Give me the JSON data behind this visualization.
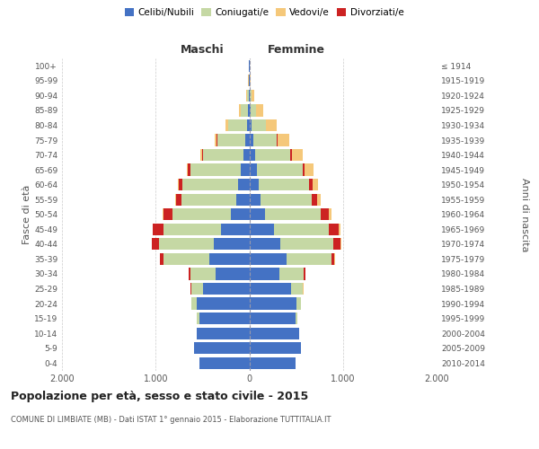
{
  "age_groups": [
    "0-4",
    "5-9",
    "10-14",
    "15-19",
    "20-24",
    "25-29",
    "30-34",
    "35-39",
    "40-44",
    "45-49",
    "50-54",
    "55-59",
    "60-64",
    "65-69",
    "70-74",
    "75-79",
    "80-84",
    "85-89",
    "90-94",
    "95-99",
    "100+"
  ],
  "birth_years": [
    "2010-2014",
    "2005-2009",
    "2000-2004",
    "1995-1999",
    "1990-1994",
    "1985-1989",
    "1980-1984",
    "1975-1979",
    "1970-1974",
    "1965-1969",
    "1960-1964",
    "1955-1959",
    "1950-1954",
    "1945-1949",
    "1940-1944",
    "1935-1939",
    "1930-1934",
    "1925-1929",
    "1920-1924",
    "1915-1919",
    "≤ 1914"
  ],
  "males": {
    "celibi": [
      530,
      590,
      560,
      530,
      560,
      490,
      360,
      430,
      380,
      300,
      200,
      140,
      120,
      90,
      60,
      40,
      25,
      10,
      5,
      3,
      2
    ],
    "coniugati": [
      0,
      0,
      0,
      30,
      60,
      130,
      270,
      490,
      580,
      620,
      620,
      580,
      590,
      540,
      430,
      300,
      200,
      80,
      20,
      5,
      2
    ],
    "vedovi": [
      0,
      0,
      0,
      0,
      0,
      0,
      2,
      5,
      5,
      5,
      5,
      8,
      10,
      10,
      15,
      20,
      20,
      15,
      5,
      2,
      0
    ],
    "divorziati": [
      0,
      0,
      0,
      0,
      2,
      5,
      15,
      30,
      80,
      110,
      100,
      60,
      40,
      25,
      15,
      10,
      5,
      2,
      0,
      0,
      0
    ]
  },
  "females": {
    "nubili": [
      490,
      550,
      530,
      490,
      500,
      450,
      320,
      400,
      330,
      260,
      170,
      120,
      100,
      80,
      60,
      40,
      25,
      10,
      5,
      3,
      2
    ],
    "coniugate": [
      0,
      0,
      0,
      20,
      50,
      120,
      260,
      480,
      570,
      590,
      590,
      550,
      540,
      490,
      380,
      250,
      150,
      60,
      15,
      5,
      2
    ],
    "vedove": [
      0,
      0,
      0,
      0,
      0,
      2,
      2,
      5,
      10,
      20,
      30,
      40,
      60,
      100,
      120,
      130,
      110,
      80,
      30,
      5,
      1
    ],
    "divorziate": [
      0,
      0,
      0,
      0,
      2,
      5,
      15,
      30,
      75,
      100,
      90,
      55,
      35,
      20,
      12,
      8,
      5,
      2,
      0,
      0,
      0
    ]
  },
  "colors": {
    "celibi_nubili": "#4472c4",
    "coniugati": "#c5d8a4",
    "vedovi": "#f5c87a",
    "divorziati": "#cc2222"
  },
  "xlim": 2000,
  "title": "Popolazione per età, sesso e stato civile - 2015",
  "subtitle": "COMUNE DI LIMBIATE (MB) - Dati ISTAT 1° gennaio 2015 - Elaborazione TUTTITALIA.IT",
  "ylabel_left": "Fasce di età",
  "ylabel_right": "Anni di nascita",
  "xlabel_left": "Maschi",
  "xlabel_right": "Femmine",
  "legend_labels": [
    "Celibi/Nubili",
    "Coniugati/e",
    "Vedovi/e",
    "Divorziati/e"
  ],
  "background_color": "#ffffff"
}
